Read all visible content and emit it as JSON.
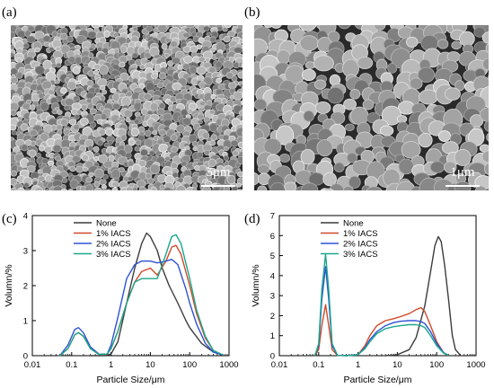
{
  "panels": {
    "a": {
      "label": "(a)",
      "scale_bar": "5μm"
    },
    "b": {
      "label": "(b)",
      "scale_bar": "1μm"
    },
    "c": {
      "label": "(c)"
    },
    "d": {
      "label": "(d)"
    }
  },
  "colors": {
    "None": "#3c3c3c",
    "1% IACS": "#d2492a",
    "2% IACS": "#2f52d6",
    "3% IACS": "#1aa78c"
  },
  "chart_data": [
    {
      "type": "line",
      "panel": "c",
      "xlabel": "Particle Size/μm",
      "ylabel": "Volumn/%",
      "xscale": "log",
      "xlim": [
        0.01,
        1000
      ],
      "ylim": [
        0,
        4
      ],
      "xticks": [
        "0.01",
        "0.1",
        "1",
        "10",
        "100",
        "1000"
      ],
      "yticks": [
        "0",
        "1",
        "2",
        "3",
        "4"
      ],
      "legend": "top-left",
      "series": [
        {
          "name": "None",
          "x": [
            0.3,
            0.7,
            1.0,
            1.5,
            2.5,
            4,
            6,
            8,
            10,
            15,
            20,
            30,
            50,
            80,
            100,
            200,
            400,
            700
          ],
          "y": [
            0,
            0,
            0.05,
            0.4,
            1.5,
            2.5,
            3.2,
            3.5,
            3.4,
            3.0,
            2.5,
            2.0,
            1.5,
            1.0,
            0.8,
            0.35,
            0.1,
            0.02
          ]
        },
        {
          "name": "1% IACS",
          "x": [
            0.05,
            0.08,
            0.12,
            0.15,
            0.2,
            0.3,
            0.5,
            0.8,
            1.0,
            1.5,
            2.5,
            4,
            6,
            10,
            15,
            25,
            35,
            45,
            60,
            100,
            150,
            250,
            400,
            700
          ],
          "y": [
            0,
            0.2,
            0.6,
            0.66,
            0.55,
            0.2,
            0.03,
            0.05,
            0.2,
            0.7,
            1.5,
            2.1,
            2.4,
            2.5,
            2.3,
            2.7,
            3.1,
            3.15,
            2.9,
            2.0,
            1.2,
            0.5,
            0.15,
            0.02
          ]
        },
        {
          "name": "2% IACS",
          "x": [
            0.05,
            0.08,
            0.12,
            0.15,
            0.2,
            0.3,
            0.5,
            0.8,
            1.0,
            1.5,
            2.5,
            4,
            6,
            10,
            15,
            25,
            35,
            50,
            80,
            100,
            150,
            250,
            400,
            700
          ],
          "y": [
            0,
            0.3,
            0.75,
            0.8,
            0.65,
            0.25,
            0.04,
            0.05,
            0.3,
            1.1,
            2.2,
            2.6,
            2.7,
            2.7,
            2.65,
            2.7,
            2.75,
            2.6,
            1.9,
            1.5,
            0.9,
            0.35,
            0.1,
            0.02
          ]
        },
        {
          "name": "3% IACS",
          "x": [
            0.05,
            0.08,
            0.12,
            0.15,
            0.2,
            0.3,
            0.5,
            0.8,
            1.0,
            1.5,
            2.5,
            4,
            6,
            10,
            15,
            25,
            35,
            45,
            60,
            100,
            150,
            250,
            400,
            700
          ],
          "y": [
            0,
            0.2,
            0.6,
            0.66,
            0.55,
            0.2,
            0.03,
            0.05,
            0.2,
            0.7,
            1.5,
            2.1,
            2.2,
            2.2,
            2.2,
            2.9,
            3.4,
            3.45,
            3.2,
            2.2,
            1.3,
            0.55,
            0.15,
            0.02
          ]
        }
      ]
    },
    {
      "type": "line",
      "panel": "d",
      "xlabel": "Particle Size/μm",
      "ylabel": "Volumn/%",
      "xscale": "log",
      "xlim": [
        0.01,
        1000
      ],
      "ylim": [
        0,
        7
      ],
      "xticks": [
        "0.01",
        "0.1",
        "1",
        "10",
        "100",
        "1000"
      ],
      "yticks": [
        "0",
        "1",
        "2",
        "3",
        "4",
        "5",
        "6",
        "7"
      ],
      "legend": "top-left",
      "series": [
        {
          "name": "None",
          "x": [
            5,
            10,
            20,
            30,
            50,
            70,
            90,
            110,
            130,
            160,
            200,
            250,
            300,
            400
          ],
          "y": [
            0,
            0.05,
            0.3,
            0.9,
            2.5,
            4.2,
            5.5,
            5.95,
            5.7,
            4.5,
            2.8,
            1.0,
            0.3,
            0.02
          ]
        },
        {
          "name": "1% IACS",
          "x": [
            0.08,
            0.1,
            0.12,
            0.15,
            0.18,
            0.22,
            0.3,
            0.5,
            1.0,
            1.5,
            2,
            3,
            5,
            8,
            12,
            20,
            30,
            40,
            50,
            70,
            100,
            150,
            200
          ],
          "y": [
            0,
            0.3,
            1.5,
            2.55,
            1.5,
            0.3,
            0.02,
            0,
            0.05,
            0.5,
            1.0,
            1.5,
            1.75,
            1.85,
            1.95,
            2.1,
            2.3,
            2.4,
            2.2,
            1.5,
            0.7,
            0.15,
            0.02
          ]
        },
        {
          "name": "2% IACS",
          "x": [
            0.08,
            0.1,
            0.12,
            0.15,
            0.18,
            0.22,
            0.3,
            0.5,
            1.0,
            1.5,
            2,
            3,
            5,
            8,
            12,
            20,
            30,
            40,
            50,
            70,
            100,
            150,
            200
          ],
          "y": [
            0,
            0.5,
            2.8,
            4.45,
            2.8,
            0.5,
            0.02,
            0,
            0.05,
            0.4,
            0.8,
            1.2,
            1.5,
            1.65,
            1.72,
            1.75,
            1.75,
            1.7,
            1.6,
            1.2,
            0.6,
            0.15,
            0.02
          ]
        },
        {
          "name": "3% IACS",
          "x": [
            0.08,
            0.1,
            0.12,
            0.15,
            0.18,
            0.22,
            0.3,
            0.5,
            1.0,
            1.5,
            2,
            3,
            5,
            8,
            12,
            20,
            30,
            40,
            50,
            70,
            100,
            150,
            200
          ],
          "y": [
            0,
            0.6,
            3.3,
            5.05,
            3.3,
            0.6,
            0.02,
            0,
            0.05,
            0.35,
            0.7,
            1.1,
            1.35,
            1.45,
            1.5,
            1.55,
            1.55,
            1.5,
            1.4,
            1.0,
            0.5,
            0.12,
            0.02
          ]
        }
      ]
    }
  ]
}
